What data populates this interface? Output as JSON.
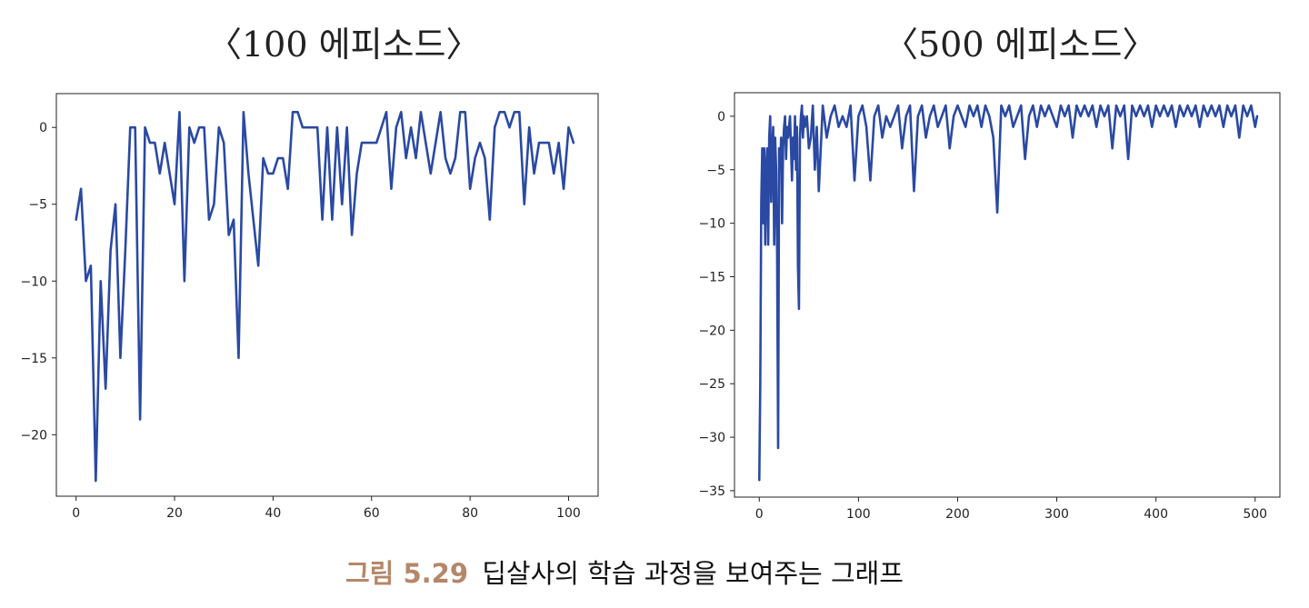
{
  "figure_caption": {
    "label": "그림 5.29",
    "text": "딥살사의 학습 과정을 보여주는 그래프"
  },
  "colors": {
    "line": "#2a49a3",
    "caption_label": "#b5876a"
  },
  "chart_data": [
    {
      "type": "line",
      "title": "〈100 에피소드〉",
      "xlabel": "",
      "ylabel": "",
      "xlim": [
        -4,
        106
      ],
      "ylim": [
        -24,
        2.2
      ],
      "xticks": [
        0,
        20,
        40,
        60,
        80,
        100
      ],
      "yticks": [
        0,
        -5,
        -10,
        -15,
        -20
      ],
      "grid": false,
      "series": [
        {
          "x": [
            0,
            1,
            2,
            3,
            4,
            5,
            6,
            7,
            8,
            9,
            10,
            11,
            12,
            13,
            14,
            15,
            16,
            17,
            18,
            19,
            20,
            21,
            22,
            23,
            24,
            25,
            26,
            27,
            28,
            29,
            30,
            31,
            32,
            33,
            34,
            35,
            36,
            37,
            38,
            39,
            40,
            41,
            42,
            43,
            44,
            45,
            46,
            47,
            48,
            49,
            50,
            51,
            52,
            53,
            54,
            55,
            56,
            57,
            58,
            59,
            60,
            61,
            62,
            63,
            64,
            65,
            66,
            67,
            68,
            69,
            70,
            71,
            72,
            73,
            74,
            75,
            76,
            77,
            78,
            79,
            80,
            81,
            82,
            83,
            84,
            85,
            86,
            87,
            88,
            89,
            90,
            91,
            92,
            93,
            94,
            95,
            96,
            97,
            98,
            99,
            100,
            101
          ],
          "y": [
            -6,
            -4,
            -10,
            -9,
            -23,
            -10,
            -17,
            -8,
            -5,
            -15,
            -8,
            0,
            0,
            -19,
            0,
            -1,
            -1,
            -3,
            -1,
            -3,
            -5,
            1,
            -10,
            0,
            -1,
            0,
            0,
            -6,
            -5,
            0,
            -1,
            -7,
            -6,
            -15,
            1,
            -3,
            -6,
            -9,
            -2,
            -3,
            -3,
            -2,
            -2,
            -4,
            1,
            1,
            0,
            0,
            0,
            0,
            -6,
            0,
            -6,
            0,
            -5,
            0,
            -7,
            -3,
            -1,
            -1,
            -1,
            -1,
            0,
            1,
            -4,
            0,
            1,
            -2,
            0,
            -2,
            1,
            -1,
            -3,
            -1,
            1,
            -2,
            -3,
            -2,
            1,
            1,
            -4,
            -2,
            -1,
            -2,
            -6,
            0,
            1,
            1,
            0,
            1,
            1,
            -5,
            0,
            -3,
            -1,
            -1,
            -1,
            -3,
            -1,
            -4,
            0,
            -1
          ]
        }
      ]
    },
    {
      "type": "line",
      "title": "〈500 에피소드〉",
      "xlabel": "",
      "ylabel": "",
      "xlim": [
        -25,
        525
      ],
      "ylim": [
        -35.6,
        2.2
      ],
      "xticks": [
        0,
        100,
        200,
        300,
        400,
        500
      ],
      "yticks": [
        0,
        -5,
        -10,
        -15,
        -20,
        -25,
        -30,
        -35
      ],
      "grid": false,
      "series": [
        {
          "x": [
            0,
            1,
            2,
            3,
            4,
            5,
            6,
            7,
            8,
            9,
            10,
            11,
            12,
            13,
            14,
            15,
            16,
            17,
            18,
            19,
            20,
            21,
            22,
            23,
            24,
            25,
            26,
            27,
            28,
            29,
            30,
            31,
            32,
            33,
            34,
            35,
            36,
            37,
            38,
            39,
            40,
            41,
            42,
            43,
            44,
            45,
            46,
            48,
            50,
            52,
            54,
            56,
            58,
            60,
            64,
            68,
            72,
            76,
            80,
            84,
            88,
            92,
            96,
            100,
            104,
            108,
            112,
            116,
            120,
            124,
            128,
            132,
            136,
            140,
            144,
            148,
            152,
            156,
            160,
            164,
            168,
            172,
            176,
            180,
            184,
            188,
            192,
            196,
            200,
            204,
            208,
            212,
            216,
            220,
            224,
            228,
            232,
            236,
            240,
            244,
            248,
            252,
            256,
            260,
            264,
            268,
            272,
            276,
            280,
            284,
            288,
            292,
            296,
            300,
            304,
            308,
            312,
            316,
            320,
            324,
            328,
            332,
            336,
            340,
            344,
            348,
            352,
            356,
            360,
            364,
            368,
            372,
            376,
            380,
            384,
            388,
            392,
            396,
            400,
            404,
            408,
            412,
            416,
            420,
            424,
            428,
            432,
            436,
            440,
            444,
            448,
            452,
            456,
            460,
            464,
            468,
            472,
            476,
            480,
            484,
            488,
            492,
            496,
            500,
            502
          ],
          "y": [
            -34,
            -25,
            -8,
            -3,
            -10,
            -3,
            -12,
            -5,
            -3,
            -12,
            -2,
            0,
            -8,
            -3,
            -1,
            -12,
            -2,
            -5,
            -13,
            -31,
            -3,
            -5,
            -2,
            -10,
            -3,
            -1,
            0,
            -4,
            -1,
            -2,
            -1,
            0,
            -3,
            -6,
            -2,
            -4,
            0,
            -5,
            -1,
            -14,
            -18,
            -2,
            0,
            1,
            -2,
            0,
            -1,
            0,
            -3,
            -2,
            1,
            -5,
            -1,
            -7,
            1,
            -2,
            0,
            1,
            -1,
            0,
            -1,
            1,
            -6,
            0,
            1,
            -1,
            -6,
            0,
            1,
            -2,
            0,
            -1,
            0,
            1,
            -3,
            0,
            1,
            -7,
            0,
            1,
            -2,
            0,
            1,
            -1,
            0,
            1,
            -3,
            0,
            1,
            0,
            -1,
            1,
            0,
            1,
            -1,
            1,
            0,
            -2,
            -9,
            1,
            0,
            1,
            -1,
            0,
            1,
            -4,
            0,
            1,
            -1,
            1,
            0,
            1,
            0,
            -1,
            1,
            0,
            1,
            -2,
            1,
            0,
            1,
            0,
            1,
            -1,
            1,
            0,
            1,
            -3,
            1,
            0,
            1,
            -4,
            1,
            0,
            1,
            0,
            1,
            -1,
            1,
            0,
            1,
            0,
            1,
            -1,
            1,
            0,
            1,
            0,
            1,
            -1,
            1,
            0,
            1,
            0,
            1,
            -1,
            1,
            0,
            1,
            -2,
            1,
            0,
            1,
            -1,
            0
          ]
        }
      ]
    }
  ]
}
